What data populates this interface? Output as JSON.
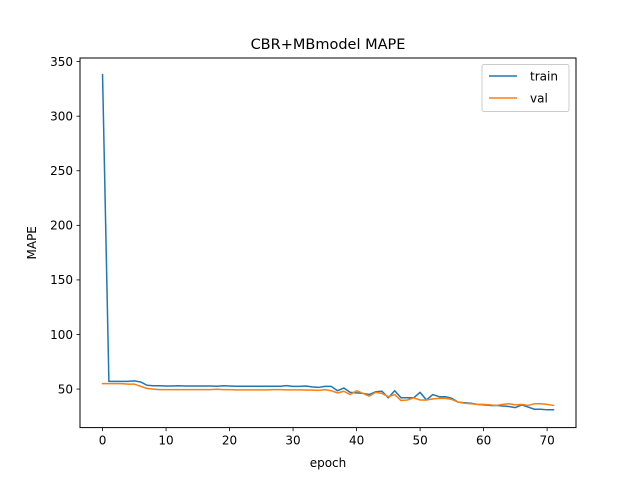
{
  "chart_data": {
    "type": "line",
    "title": "CBR+MBmodel MAPE",
    "xlabel": "epoch",
    "ylabel": "MAPE",
    "xlim": [
      -3.55,
      74.55
    ],
    "ylim": [
      14.7,
      353.3
    ],
    "xticks": [
      0,
      10,
      20,
      30,
      40,
      50,
      60,
      70
    ],
    "yticks": [
      50,
      100,
      150,
      200,
      250,
      300,
      350
    ],
    "grid": false,
    "legend_position": "top-right",
    "x": [
      0,
      1,
      2,
      3,
      4,
      5,
      6,
      7,
      8,
      9,
      10,
      11,
      12,
      13,
      14,
      15,
      16,
      17,
      18,
      19,
      20,
      21,
      22,
      23,
      24,
      25,
      26,
      27,
      28,
      29,
      30,
      31,
      32,
      33,
      34,
      35,
      36,
      37,
      38,
      39,
      40,
      41,
      42,
      43,
      44,
      45,
      46,
      47,
      48,
      49,
      50,
      51,
      52,
      53,
      54,
      55,
      56,
      57,
      58,
      59,
      60,
      61,
      62,
      63,
      64,
      65,
      66,
      67,
      68,
      69,
      70,
      71
    ],
    "series": [
      {
        "name": "train",
        "color": "#1f77b4",
        "values": [
          338,
          57,
          57,
          57,
          57,
          57.5,
          56.5,
          53.5,
          53,
          53,
          52.8,
          52.8,
          53,
          52.8,
          52.8,
          52.8,
          52.8,
          52.8,
          52.6,
          53,
          52.8,
          52.6,
          52.6,
          52.6,
          52.6,
          52.6,
          52.6,
          52.6,
          52.6,
          53.2,
          52.5,
          52.5,
          52.8,
          52,
          51.5,
          52.5,
          52.5,
          48.5,
          51,
          47,
          46.5,
          46,
          45,
          47.5,
          48,
          42,
          48.5,
          42,
          42,
          42,
          47,
          40,
          45,
          43,
          43,
          41.5,
          38,
          37.5,
          37,
          36,
          35.5,
          35,
          35,
          34.5,
          34,
          33,
          35.5,
          33.5,
          31.5,
          31.5,
          31,
          31
        ]
      },
      {
        "name": "val",
        "color": "#ff7f0e",
        "values": [
          55,
          55,
          55,
          55,
          54.5,
          54.5,
          52.5,
          50.5,
          50,
          49.5,
          49.5,
          49.5,
          49.5,
          49.5,
          49.5,
          49.5,
          49.5,
          49.5,
          49.8,
          49.5,
          49.5,
          49.3,
          49.3,
          49.3,
          49.3,
          49.3,
          49.3,
          49.5,
          49.5,
          49.3,
          49.3,
          49.3,
          49.2,
          49,
          48.8,
          49.5,
          48.5,
          46.5,
          48,
          45,
          48.5,
          46,
          43.5,
          47,
          46,
          43,
          45,
          39.5,
          40,
          42,
          40,
          40,
          41,
          41.5,
          41.5,
          40.5,
          38,
          37,
          36.5,
          36,
          36,
          35.5,
          35,
          36,
          36.5,
          35.5,
          36,
          35,
          36.5,
          36.5,
          36,
          35
        ]
      }
    ]
  }
}
